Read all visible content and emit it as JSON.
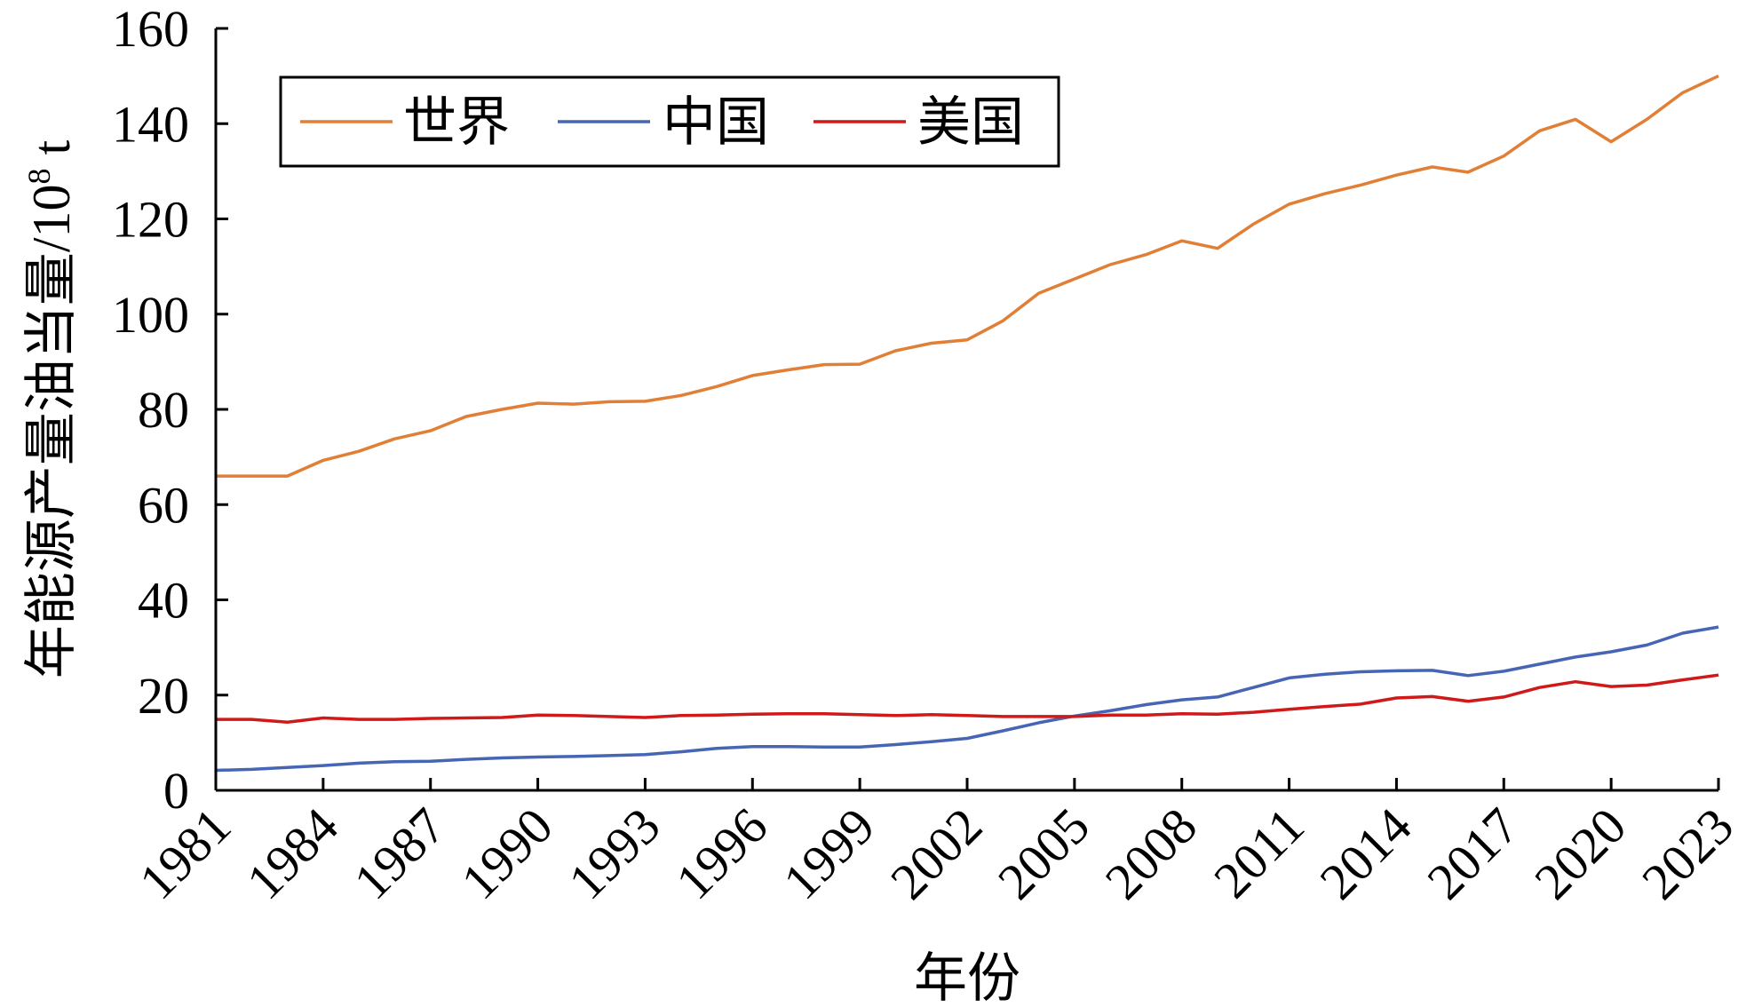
{
  "chart_data": {
    "type": "line",
    "title": "",
    "xlabel": "年份",
    "ylabel": "年能源产量油当量/10⁸ t",
    "ylabel_main": "年能源产量油当量/10",
    "ylabel_sup": "8",
    "ylabel_unit": " t",
    "xlim": [
      1981,
      2023
    ],
    "ylim": [
      0,
      160
    ],
    "x_ticks": [
      1981,
      1984,
      1987,
      1990,
      1993,
      1996,
      1999,
      2002,
      2005,
      2008,
      2011,
      2014,
      2017,
      2020,
      2023
    ],
    "y_ticks": [
      0,
      20,
      40,
      60,
      80,
      100,
      120,
      140,
      160
    ],
    "grid": false,
    "legend": "top-left",
    "x": [
      1981,
      1982,
      1983,
      1984,
      1985,
      1986,
      1987,
      1988,
      1989,
      1990,
      1991,
      1992,
      1993,
      1994,
      1995,
      1996,
      1997,
      1998,
      1999,
      2000,
      2001,
      2002,
      2003,
      2004,
      2005,
      2006,
      2007,
      2008,
      2009,
      2010,
      2011,
      2012,
      2013,
      2014,
      2015,
      2016,
      2017,
      2018,
      2019,
      2020,
      2021,
      2022,
      2023
    ],
    "series": [
      {
        "name": "世界",
        "color": "#E07F35",
        "values": [
          66,
          66,
          66,
          69.3,
          71.2,
          73.8,
          75.5,
          78.5,
          80,
          81.3,
          81.1,
          81.6,
          81.7,
          82.9,
          84.8,
          87.1,
          88.3,
          89.4,
          89.5,
          92.3,
          93.9,
          94.6,
          98.6,
          104.4,
          107.4,
          110.4,
          112.5,
          115.4,
          113.8,
          118.9,
          123.1,
          125.3,
          127.1,
          129.2,
          130.9,
          129.8,
          133.2,
          138.5,
          140.9,
          136.2,
          140.9,
          146.5,
          150
        ]
      },
      {
        "name": "中国",
        "color": "#4665B4",
        "values": [
          4.2,
          4.4,
          4.8,
          5.2,
          5.7,
          6,
          6.1,
          6.5,
          6.8,
          7,
          7.1,
          7.3,
          7.5,
          8.1,
          8.8,
          9.2,
          9.2,
          9.1,
          9.1,
          9.6,
          10.2,
          10.9,
          12.5,
          14.2,
          15.6,
          16.7,
          18,
          19,
          19.6,
          21.6,
          23.6,
          24.4,
          24.9,
          25.1,
          25.2,
          24.1,
          25,
          26.5,
          28,
          29.1,
          30.5,
          33,
          34.3
        ]
      },
      {
        "name": "美国",
        "color": "#D01919",
        "values": [
          14.9,
          14.9,
          14.3,
          15.2,
          14.9,
          14.9,
          15.1,
          15.2,
          15.3,
          15.8,
          15.7,
          15.5,
          15.3,
          15.7,
          15.8,
          16,
          16.1,
          16.1,
          15.9,
          15.7,
          15.9,
          15.7,
          15.5,
          15.5,
          15.5,
          15.8,
          15.8,
          16.1,
          16,
          16.4,
          17,
          17.6,
          18.1,
          19.4,
          19.7,
          18.7,
          19.6,
          21.6,
          22.8,
          21.8,
          22.1,
          23.2,
          24.2
        ]
      }
    ]
  }
}
